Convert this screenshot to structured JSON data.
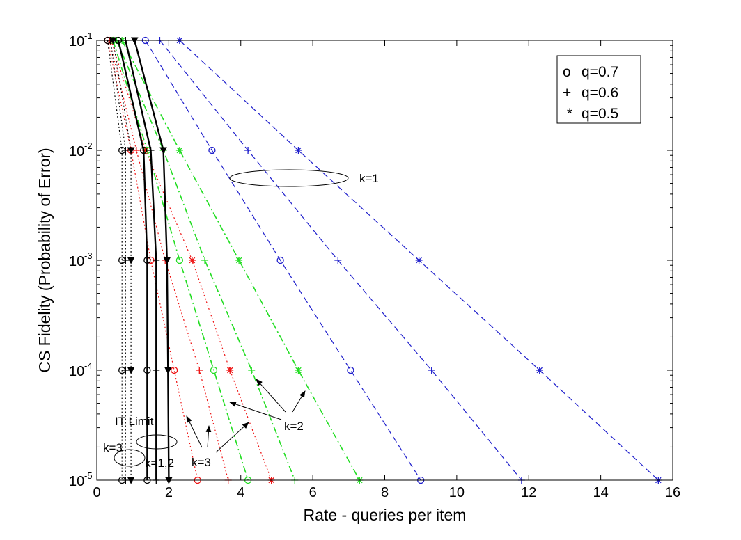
{
  "chart_data": {
    "type": "line",
    "title": "",
    "xlabel": "Rate - queries per item",
    "ylabel": "CS Fidelity (Probability of Error)",
    "xlim": [
      0,
      16
    ],
    "ylim": [
      1e-05,
      0.1
    ],
    "yscale": "log",
    "xticks": [
      "0",
      "2",
      "4",
      "6",
      "8",
      "10",
      "12",
      "14",
      "16"
    ],
    "xtick_values": [
      0,
      2,
      4,
      6,
      8,
      10,
      12,
      14,
      16
    ],
    "yticks": [
      {
        "base": "10",
        "exp": "-5",
        "value": 1e-05
      },
      {
        "base": "10",
        "exp": "-4",
        "value": 0.0001
      },
      {
        "base": "10",
        "exp": "-3",
        "value": 0.001
      },
      {
        "base": "10",
        "exp": "-2",
        "value": 0.01
      },
      {
        "base": "10",
        "exp": "-1",
        "value": 0.1
      }
    ],
    "grid": false,
    "legend_position": "top-right",
    "legend": [
      {
        "symbol": "o",
        "label": "q=0.7"
      },
      {
        "symbol": "+",
        "label": "q=0.6"
      },
      {
        "symbol": "*",
        "label": "q=0.5"
      }
    ],
    "colors": {
      "k1": "#1f1fcc",
      "k2": "#22dd22",
      "k3": "#ee1111",
      "IT": "#000000"
    },
    "series": [
      {
        "group": "k=1",
        "q": "0.7",
        "marker": "o",
        "color": "#1f1fcc",
        "style": "dashed",
        "x": [
          1.35,
          3.2,
          5.1,
          7.05,
          9.0
        ],
        "y": [
          0.1,
          0.01,
          0.001,
          0.0001,
          1e-05
        ]
      },
      {
        "group": "k=1",
        "q": "0.6",
        "marker": "+",
        "color": "#1f1fcc",
        "style": "dashed",
        "x": [
          1.75,
          4.2,
          6.7,
          9.3,
          11.8
        ],
        "y": [
          0.1,
          0.01,
          0.001,
          0.0001,
          1e-05
        ]
      },
      {
        "group": "k=1",
        "q": "0.5",
        "marker": "*",
        "color": "#1f1fcc",
        "style": "dashed",
        "x": [
          2.3,
          5.6,
          8.95,
          12.3,
          15.6
        ],
        "y": [
          0.1,
          0.01,
          0.001,
          0.0001,
          1e-05
        ]
      },
      {
        "group": "k=2",
        "q": "0.7",
        "marker": "o",
        "color": "#22dd22",
        "style": "dashdot",
        "x": [
          0.45,
          1.4,
          2.3,
          3.25,
          4.2
        ],
        "y": [
          0.1,
          0.01,
          0.001,
          0.0001,
          1e-05
        ]
      },
      {
        "group": "k=2",
        "q": "0.6",
        "marker": "+",
        "color": "#22dd22",
        "style": "dashdot",
        "x": [
          0.55,
          1.85,
          3.0,
          4.3,
          5.5
        ],
        "y": [
          0.1,
          0.01,
          0.001,
          0.0001,
          1e-05
        ]
      },
      {
        "group": "k=2",
        "q": "0.5",
        "marker": "*",
        "color": "#22dd22",
        "style": "dashdot",
        "x": [
          0.7,
          2.3,
          3.95,
          5.6,
          7.3
        ],
        "y": [
          0.1,
          0.01,
          0.001,
          0.0001,
          1e-05
        ]
      },
      {
        "group": "k=3",
        "q": "0.7",
        "marker": "o",
        "color": "#ee1111",
        "style": "dotted",
        "x": [
          0.3,
          0.95,
          1.5,
          2.15,
          2.8
        ],
        "y": [
          0.1,
          0.01,
          0.001,
          0.0001,
          1e-05
        ]
      },
      {
        "group": "k=3",
        "q": "0.6",
        "marker": "+",
        "color": "#ee1111",
        "style": "dotted",
        "x": [
          0.35,
          1.1,
          1.9,
          2.85,
          3.65
        ],
        "y": [
          0.1,
          0.01,
          0.001,
          0.0001,
          1e-05
        ]
      },
      {
        "group": "k=3",
        "q": "0.5",
        "marker": "*",
        "color": "#ee1111",
        "style": "dotted",
        "x": [
          0.4,
          1.35,
          2.65,
          3.7,
          4.85
        ],
        "y": [
          0.1,
          0.01,
          0.001,
          0.0001,
          1e-05
        ]
      },
      {
        "group": "k=1,2",
        "q": "0.7",
        "marker": "o",
        "color": "#000000",
        "style": "solid",
        "x": [
          0.6,
          1.3,
          1.4,
          1.4,
          1.4
        ],
        "y": [
          0.1,
          0.01,
          0.001,
          0.0001,
          1e-05
        ]
      },
      {
        "group": "k=1,2",
        "q": "0.6",
        "marker": "+",
        "color": "#000000",
        "style": "solid",
        "x": [
          0.8,
          1.5,
          1.65,
          1.65,
          1.65
        ],
        "y": [
          0.1,
          0.01,
          0.001,
          0.0001,
          1e-05
        ]
      },
      {
        "group": "k=1,2",
        "q": "0.5",
        "marker": "v",
        "color": "#000000",
        "style": "solid",
        "x": [
          1.05,
          1.85,
          1.95,
          1.98,
          2.0
        ],
        "y": [
          0.1,
          0.01,
          0.001,
          0.0001,
          1e-05
        ]
      },
      {
        "group": "k=3 IT",
        "q": "0.7",
        "marker": "o",
        "color": "#000000",
        "style": "dotted",
        "x": [
          0.3,
          0.7,
          0.7,
          0.7,
          0.7
        ],
        "y": [
          0.1,
          0.01,
          0.001,
          0.0001,
          1e-05
        ]
      },
      {
        "group": "k=3 IT",
        "q": "0.6",
        "marker": "+",
        "color": "#000000",
        "style": "dotted",
        "x": [
          0.38,
          0.8,
          0.8,
          0.8,
          0.8
        ],
        "y": [
          0.1,
          0.01,
          0.001,
          0.0001,
          1e-05
        ]
      },
      {
        "group": "k=3 IT",
        "q": "0.5",
        "marker": "v",
        "color": "#000000",
        "style": "dotted",
        "x": [
          0.45,
          0.95,
          0.95,
          0.95,
          0.95
        ],
        "y": [
          0.1,
          0.01,
          0.001,
          0.0001,
          1e-05
        ]
      }
    ],
    "annotations": {
      "k1": "k=1",
      "k2": "k=2",
      "k3": "k=3",
      "k12": "k=1,2",
      "k3_it": "k=3",
      "it_limit": "IT Limit"
    }
  }
}
